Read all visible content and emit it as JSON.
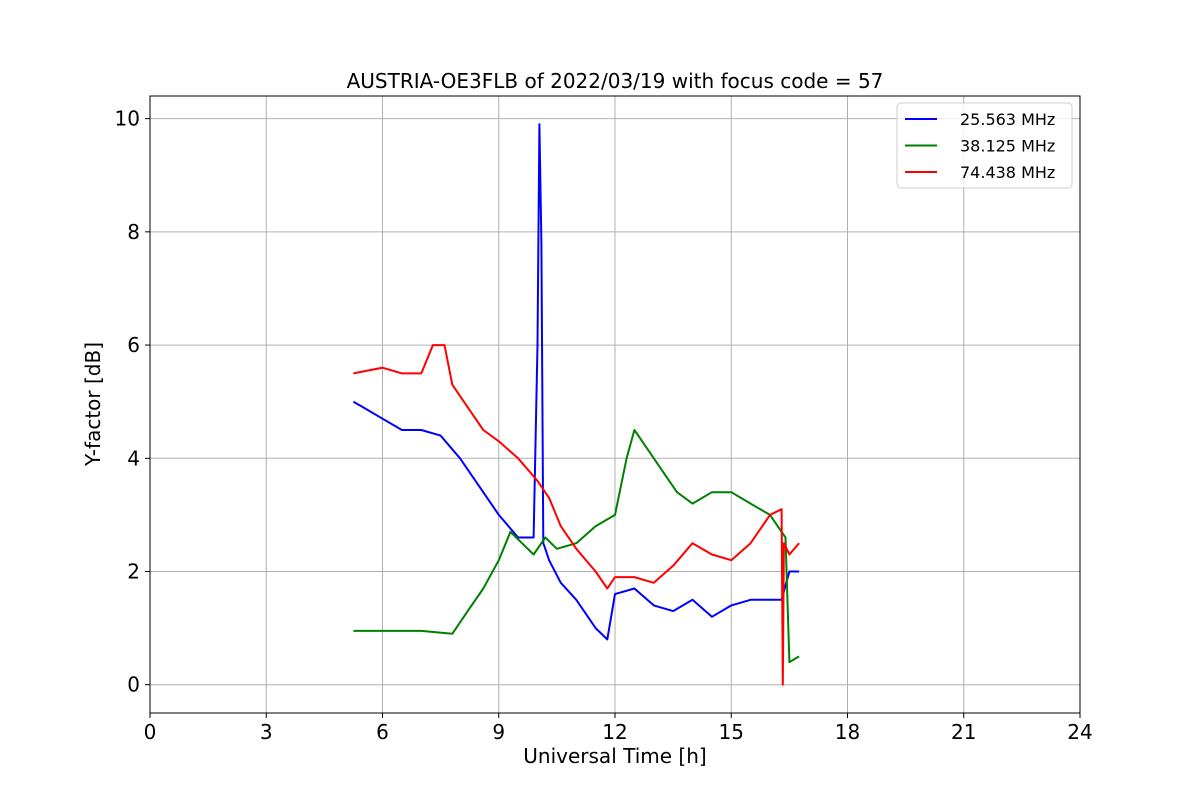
{
  "chart_data": {
    "type": "line",
    "title": "AUSTRIA-OE3FLB of 2022/03/19 with focus code = 57",
    "xlabel": "Universal Time [h]",
    "ylabel": "Y-factor [dB]",
    "xlim": [
      0,
      24
    ],
    "ylim": [
      -0.5,
      10.4
    ],
    "xticks": [
      0,
      3,
      6,
      9,
      12,
      15,
      18,
      21,
      24
    ],
    "yticks": [
      0,
      2,
      4,
      6,
      8,
      10
    ],
    "grid": true,
    "legend_position": "top-right",
    "series": [
      {
        "name": "25.563 MHz",
        "color": "#0000ff",
        "x": [
          5.25,
          5.5,
          6.0,
          6.5,
          7.0,
          7.5,
          8.0,
          8.5,
          9.0,
          9.5,
          9.9,
          10.0,
          10.05,
          10.1,
          10.15,
          10.2,
          10.3,
          10.6,
          11.0,
          11.5,
          11.8,
          12.0,
          12.5,
          13.0,
          13.5,
          14.0,
          14.5,
          15.0,
          15.5,
          16.0,
          16.3,
          16.5,
          16.75
        ],
        "y": [
          5.0,
          4.9,
          4.7,
          4.5,
          4.5,
          4.4,
          4.0,
          3.5,
          3.0,
          2.6,
          2.6,
          6.0,
          9.9,
          7.8,
          2.5,
          2.4,
          2.2,
          1.8,
          1.5,
          1.0,
          0.8,
          1.6,
          1.7,
          1.4,
          1.3,
          1.5,
          1.2,
          1.4,
          1.5,
          1.5,
          1.5,
          2.0,
          2.0
        ]
      },
      {
        "name": "38.125 MHz",
        "color": "#008000",
        "x": [
          5.25,
          6.0,
          7.0,
          7.8,
          8.2,
          8.6,
          9.0,
          9.3,
          9.6,
          9.9,
          10.2,
          10.5,
          11.0,
          11.5,
          12.0,
          12.3,
          12.5,
          12.9,
          13.3,
          13.6,
          14.0,
          14.5,
          15.0,
          15.5,
          16.0,
          16.4,
          16.5,
          16.75
        ],
        "y": [
          0.95,
          0.95,
          0.95,
          0.9,
          1.3,
          1.7,
          2.2,
          2.7,
          2.5,
          2.3,
          2.6,
          2.4,
          2.5,
          2.8,
          3.0,
          4.0,
          4.5,
          4.1,
          3.7,
          3.4,
          3.2,
          3.4,
          3.4,
          3.2,
          3.0,
          2.6,
          0.4,
          0.5
        ]
      },
      {
        "name": "74.438 MHz",
        "color": "#ff0000",
        "x": [
          5.25,
          6.0,
          6.5,
          7.0,
          7.3,
          7.6,
          7.8,
          8.2,
          8.6,
          9.0,
          9.5,
          10.0,
          10.3,
          10.6,
          11.0,
          11.5,
          11.8,
          12.0,
          12.5,
          13.0,
          13.5,
          14.0,
          14.5,
          15.0,
          15.5,
          16.0,
          16.3,
          16.33,
          16.36,
          16.5,
          16.75
        ],
        "y": [
          5.5,
          5.6,
          5.5,
          5.5,
          6.0,
          6.0,
          5.3,
          4.9,
          4.5,
          4.3,
          4.0,
          3.6,
          3.3,
          2.8,
          2.4,
          2.0,
          1.7,
          1.9,
          1.9,
          1.8,
          2.1,
          2.5,
          2.3,
          2.2,
          2.5,
          3.0,
          3.1,
          0.0,
          2.5,
          2.3,
          2.5
        ]
      }
    ]
  }
}
